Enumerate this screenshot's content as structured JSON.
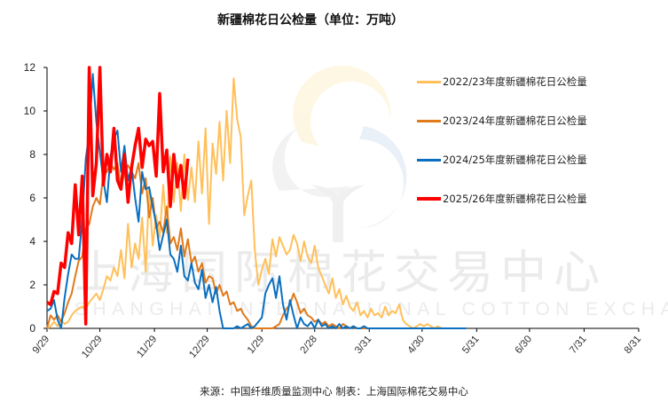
{
  "header": {
    "title": "新疆棉花日公检量（单位：万吨）"
  },
  "footer": {
    "source_text": "来源：中国纤维质量监测中心    制表：上海国际棉花交易中心"
  },
  "watermark": {
    "cn": "上海国际棉花交易中心",
    "en": "SHANGHAI INTERNATIONAL COTTON EXCHANGE"
  },
  "colors": {
    "s2223": "#FFC05A",
    "s2324": "#E07A1A",
    "s2425": "#0A6FC0",
    "s2526": "#FF0000"
  },
  "chart_data": {
    "type": "line",
    "title": "新疆棉花日公检量（单位：万吨）",
    "xlabel": "",
    "ylabel": "万吨",
    "ylim": [
      0,
      12
    ],
    "yticks": [
      0,
      2,
      4,
      6,
      8,
      10,
      12
    ],
    "xticks": [
      "9/29",
      "10/29",
      "11/29",
      "12/29",
      "1/29",
      "2/28",
      "3/31",
      "4/30",
      "5/31",
      "6/30",
      "7/31",
      "8/31"
    ],
    "xtick_day_offsets": [
      0,
      30,
      61,
      91,
      122,
      152,
      183,
      213,
      244,
      274,
      305,
      336
    ],
    "x_step_days": 2,
    "legend_position": "right",
    "grid": false,
    "series": [
      {
        "name": "2022/23年度新疆棉花日公检量",
        "color": "#FFC05A",
        "width": 2,
        "values": [
          0.0,
          0.1,
          0.3,
          0.1,
          0.4,
          0.2,
          0.3,
          0.6,
          0.8,
          0.9,
          1.0,
          0.9,
          1.2,
          1.4,
          1.6,
          1.3,
          1.8,
          2.4,
          2.2,
          2.8,
          2.4,
          3.6,
          2.3,
          4.8,
          2.8,
          3.9,
          3.2,
          5.1,
          2.6,
          6.4,
          3.8,
          5.2,
          4.2,
          6.6,
          4.4,
          7.9,
          5.8,
          7.6,
          5.4,
          8.0,
          5.9,
          7.4,
          5.8,
          8.6,
          6.2,
          9.2,
          4.8,
          8.5,
          7.1,
          9.5,
          6.8,
          10.0,
          7.6,
          11.5,
          9.6,
          8.8,
          5.2,
          6.1,
          6.8,
          3.6,
          2.0,
          2.7,
          3.2,
          2.5,
          4.1,
          3.3,
          4.2,
          3.8,
          3.4,
          3.6,
          4.3,
          3.9,
          3.1,
          4.0,
          3.3,
          3.0,
          3.8,
          2.8,
          2.4,
          2.0,
          1.6,
          2.3,
          1.4,
          1.8,
          1.1,
          1.5,
          1.0,
          0.8,
          1.2,
          0.6,
          0.8,
          0.5,
          0.9,
          0.6,
          0.7,
          0.5,
          1.0,
          0.6,
          0.8,
          0.7,
          1.1,
          0.4,
          0.2,
          0.1,
          0.0,
          0.1,
          0.2,
          0.1,
          0.2,
          0.1,
          0.0,
          0.1,
          0.0,
          0.0,
          0.0,
          0.0,
          0.0,
          0.0,
          0.0,
          0.0
        ]
      },
      {
        "name": "2023/24年度新疆棉花日公检量",
        "color": "#E07A1A",
        "width": 2,
        "values": [
          0.0,
          0.6,
          0.4,
          0.6,
          0.3,
          0.7,
          1.2,
          1.6,
          2.4,
          3.1,
          3.3,
          4.6,
          4.8,
          5.6,
          6.0,
          5.7,
          7.1,
          7.2,
          7.6,
          7.3,
          7.6,
          6.4,
          7.2,
          7.5,
          7.2,
          6.9,
          7.6,
          6.2,
          6.9,
          5.1,
          6.0,
          4.6,
          4.9,
          4.4,
          5.6,
          3.9,
          4.2,
          3.6,
          4.6,
          3.3,
          4.1,
          3.0,
          3.3,
          2.6,
          3.0,
          2.1,
          2.4,
          2.3,
          1.6,
          2.0,
          1.5,
          1.7,
          1.1,
          1.2,
          0.8,
          0.9,
          0.6,
          0.4,
          0.1,
          0.0,
          0.0,
          0.0,
          0.0,
          0.0,
          0.0,
          0.1,
          0.2,
          0.6,
          0.9,
          1.1,
          1.6,
          1.2,
          0.7,
          0.9,
          0.6,
          0.5,
          0.3,
          0.4,
          0.2,
          0.3,
          0.1,
          0.2,
          0.1,
          0.0,
          0.2,
          0.1,
          0.0,
          0.1,
          0.0,
          0.0,
          0.0,
          0.0,
          0.0,
          0.0,
          0.0,
          0.0,
          0.0,
          0.0,
          0.0,
          0.0,
          0.0,
          0.0,
          0.0,
          0.0,
          0.0,
          0.0,
          0.0,
          0.0,
          0.0,
          0.0,
          0.0,
          0.0,
          0.0,
          0.0,
          0.0,
          0.0,
          0.0,
          0.0,
          0.0,
          0.0
        ]
      },
      {
        "name": "2024/25年度新疆棉花日公检量",
        "color": "#0A6FC0",
        "width": 2,
        "values": [
          0.8,
          0.9,
          1.3,
          0.4,
          0.0,
          1.4,
          2.5,
          3.4,
          3.2,
          3.2,
          5.0,
          7.8,
          9.0,
          11.7,
          9.5,
          8.1,
          6.8,
          5.8,
          7.9,
          8.7,
          9.1,
          7.2,
          8.4,
          6.8,
          7.4,
          6.0,
          4.9,
          7.2,
          6.4,
          6.5,
          5.6,
          4.8,
          3.6,
          4.3,
          5.0,
          3.4,
          3.2,
          2.6,
          3.8,
          2.4,
          2.2,
          3.0,
          2.1,
          1.8,
          2.7,
          1.4,
          2.0,
          1.2,
          1.9,
          0.8,
          0.0,
          0.0,
          0.0,
          0.0,
          0.1,
          0.0,
          0.1,
          0.2,
          0.0,
          0.1,
          0.3,
          0.5,
          1.6,
          2.0,
          2.3,
          1.4,
          2.4,
          1.1,
          0.4,
          1.3,
          0.6,
          0.0,
          0.5,
          0.2,
          0.1,
          0.3,
          0.0,
          0.4,
          0.1,
          0.2,
          0.0,
          0.1,
          0.0,
          0.2,
          0.0,
          0.1,
          0.0,
          0.1,
          0.0,
          0.0,
          0.1,
          0.0,
          0.0,
          0.0,
          0.0,
          0.0,
          0.0,
          0.0,
          0.0,
          0.0,
          0.0,
          0.0,
          0.0,
          0.0,
          0.0,
          0.0,
          0.0,
          0.0,
          0.0,
          0.0,
          0.0,
          0.0,
          0.0,
          0.0,
          0.0,
          0.0,
          0.0,
          0.0,
          0.0,
          0.0
        ]
      },
      {
        "name": "2025/26年度新疆棉花日公检量",
        "color": "#FF0000",
        "width": 3.5,
        "values": [
          1.2,
          1.1,
          1.7,
          1.6,
          3.0,
          2.8,
          4.4,
          3.9,
          6.6,
          4.3,
          7.0,
          0.2,
          12.0,
          6.1,
          7.6,
          12.0,
          6.6,
          8.0,
          7.2,
          9.2,
          6.8,
          6.4,
          8.0,
          5.8,
          7.4,
          8.4,
          9.2,
          7.4,
          8.7,
          8.4,
          8.6,
          7.0,
          10.8,
          7.2,
          8.2,
          5.6,
          8.0,
          6.5,
          7.5,
          6.0,
          7.8
        ]
      }
    ]
  },
  "legend": {
    "items": [
      {
        "label": "2022/23年度新疆棉花日公检量"
      },
      {
        "label": "2023/24年度新疆棉花日公检量"
      },
      {
        "label": "2024/25年度新疆棉花日公检量"
      },
      {
        "label": "2025/26年度新疆棉花日公检量"
      }
    ]
  }
}
